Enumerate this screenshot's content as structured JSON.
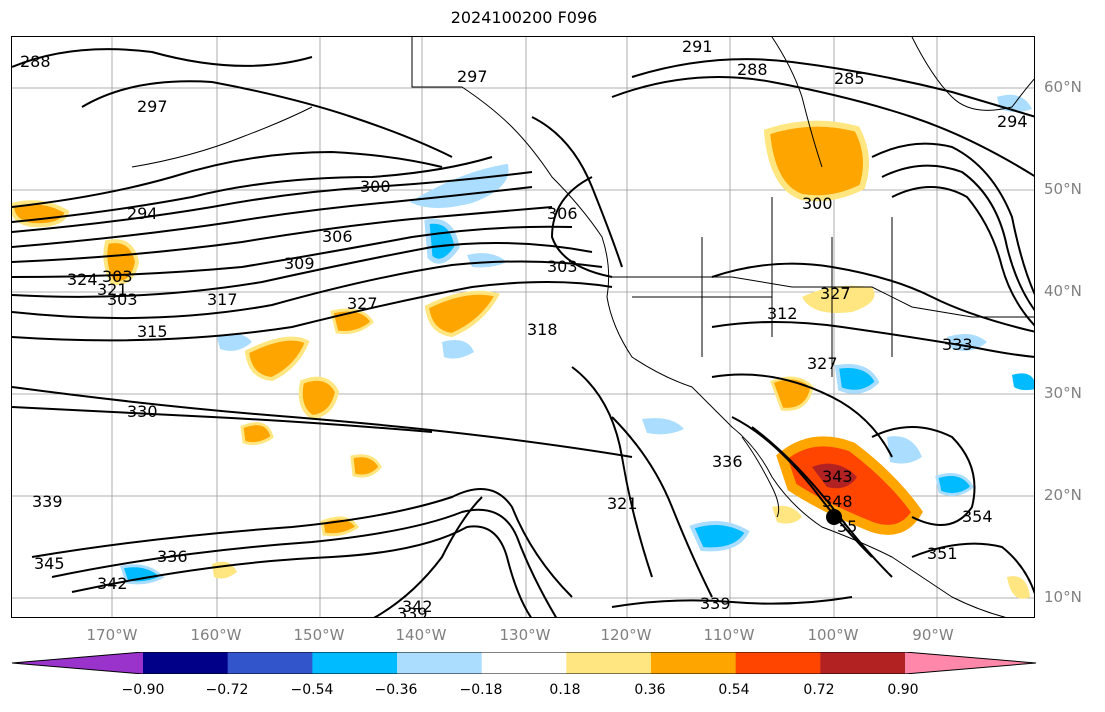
{
  "title": "2024100200 F096",
  "lat_labels": [
    "60°N",
    "50°N",
    "40°N",
    "30°N",
    "20°N",
    "10°N"
  ],
  "lon_labels": [
    "170°W",
    "160°W",
    "150°W",
    "140°W",
    "130°W",
    "120°W",
    "110°W",
    "100°W",
    "90°W"
  ],
  "colorbar": {
    "ticks": [
      "−0.90",
      "−0.72",
      "−0.54",
      "−0.36",
      "−0.18",
      "0.18",
      "0.36",
      "0.54",
      "0.72",
      "0.90"
    ],
    "colors": [
      "#9933cc",
      "#000088",
      "#3355cc",
      "#00bbff",
      "#aaddff",
      "#ffffff",
      "#ffe680",
      "#ffa500",
      "#ff4500",
      "#b22222",
      "#ff88aa"
    ]
  },
  "contour_labels": [
    "288",
    "297",
    "291",
    "288",
    "285",
    "294",
    "297",
    "294",
    "300",
    "306",
    "309",
    "306",
    "303",
    "300",
    "303",
    "303",
    "327",
    "321",
    "324",
    "317",
    "315",
    "327",
    "318",
    "312",
    "327",
    "333",
    "330",
    "336",
    "339",
    "342",
    "345",
    "336",
    "321",
    "339",
    "342",
    "339",
    "343",
    "348",
    "351",
    "354",
    "35"
  ]
}
